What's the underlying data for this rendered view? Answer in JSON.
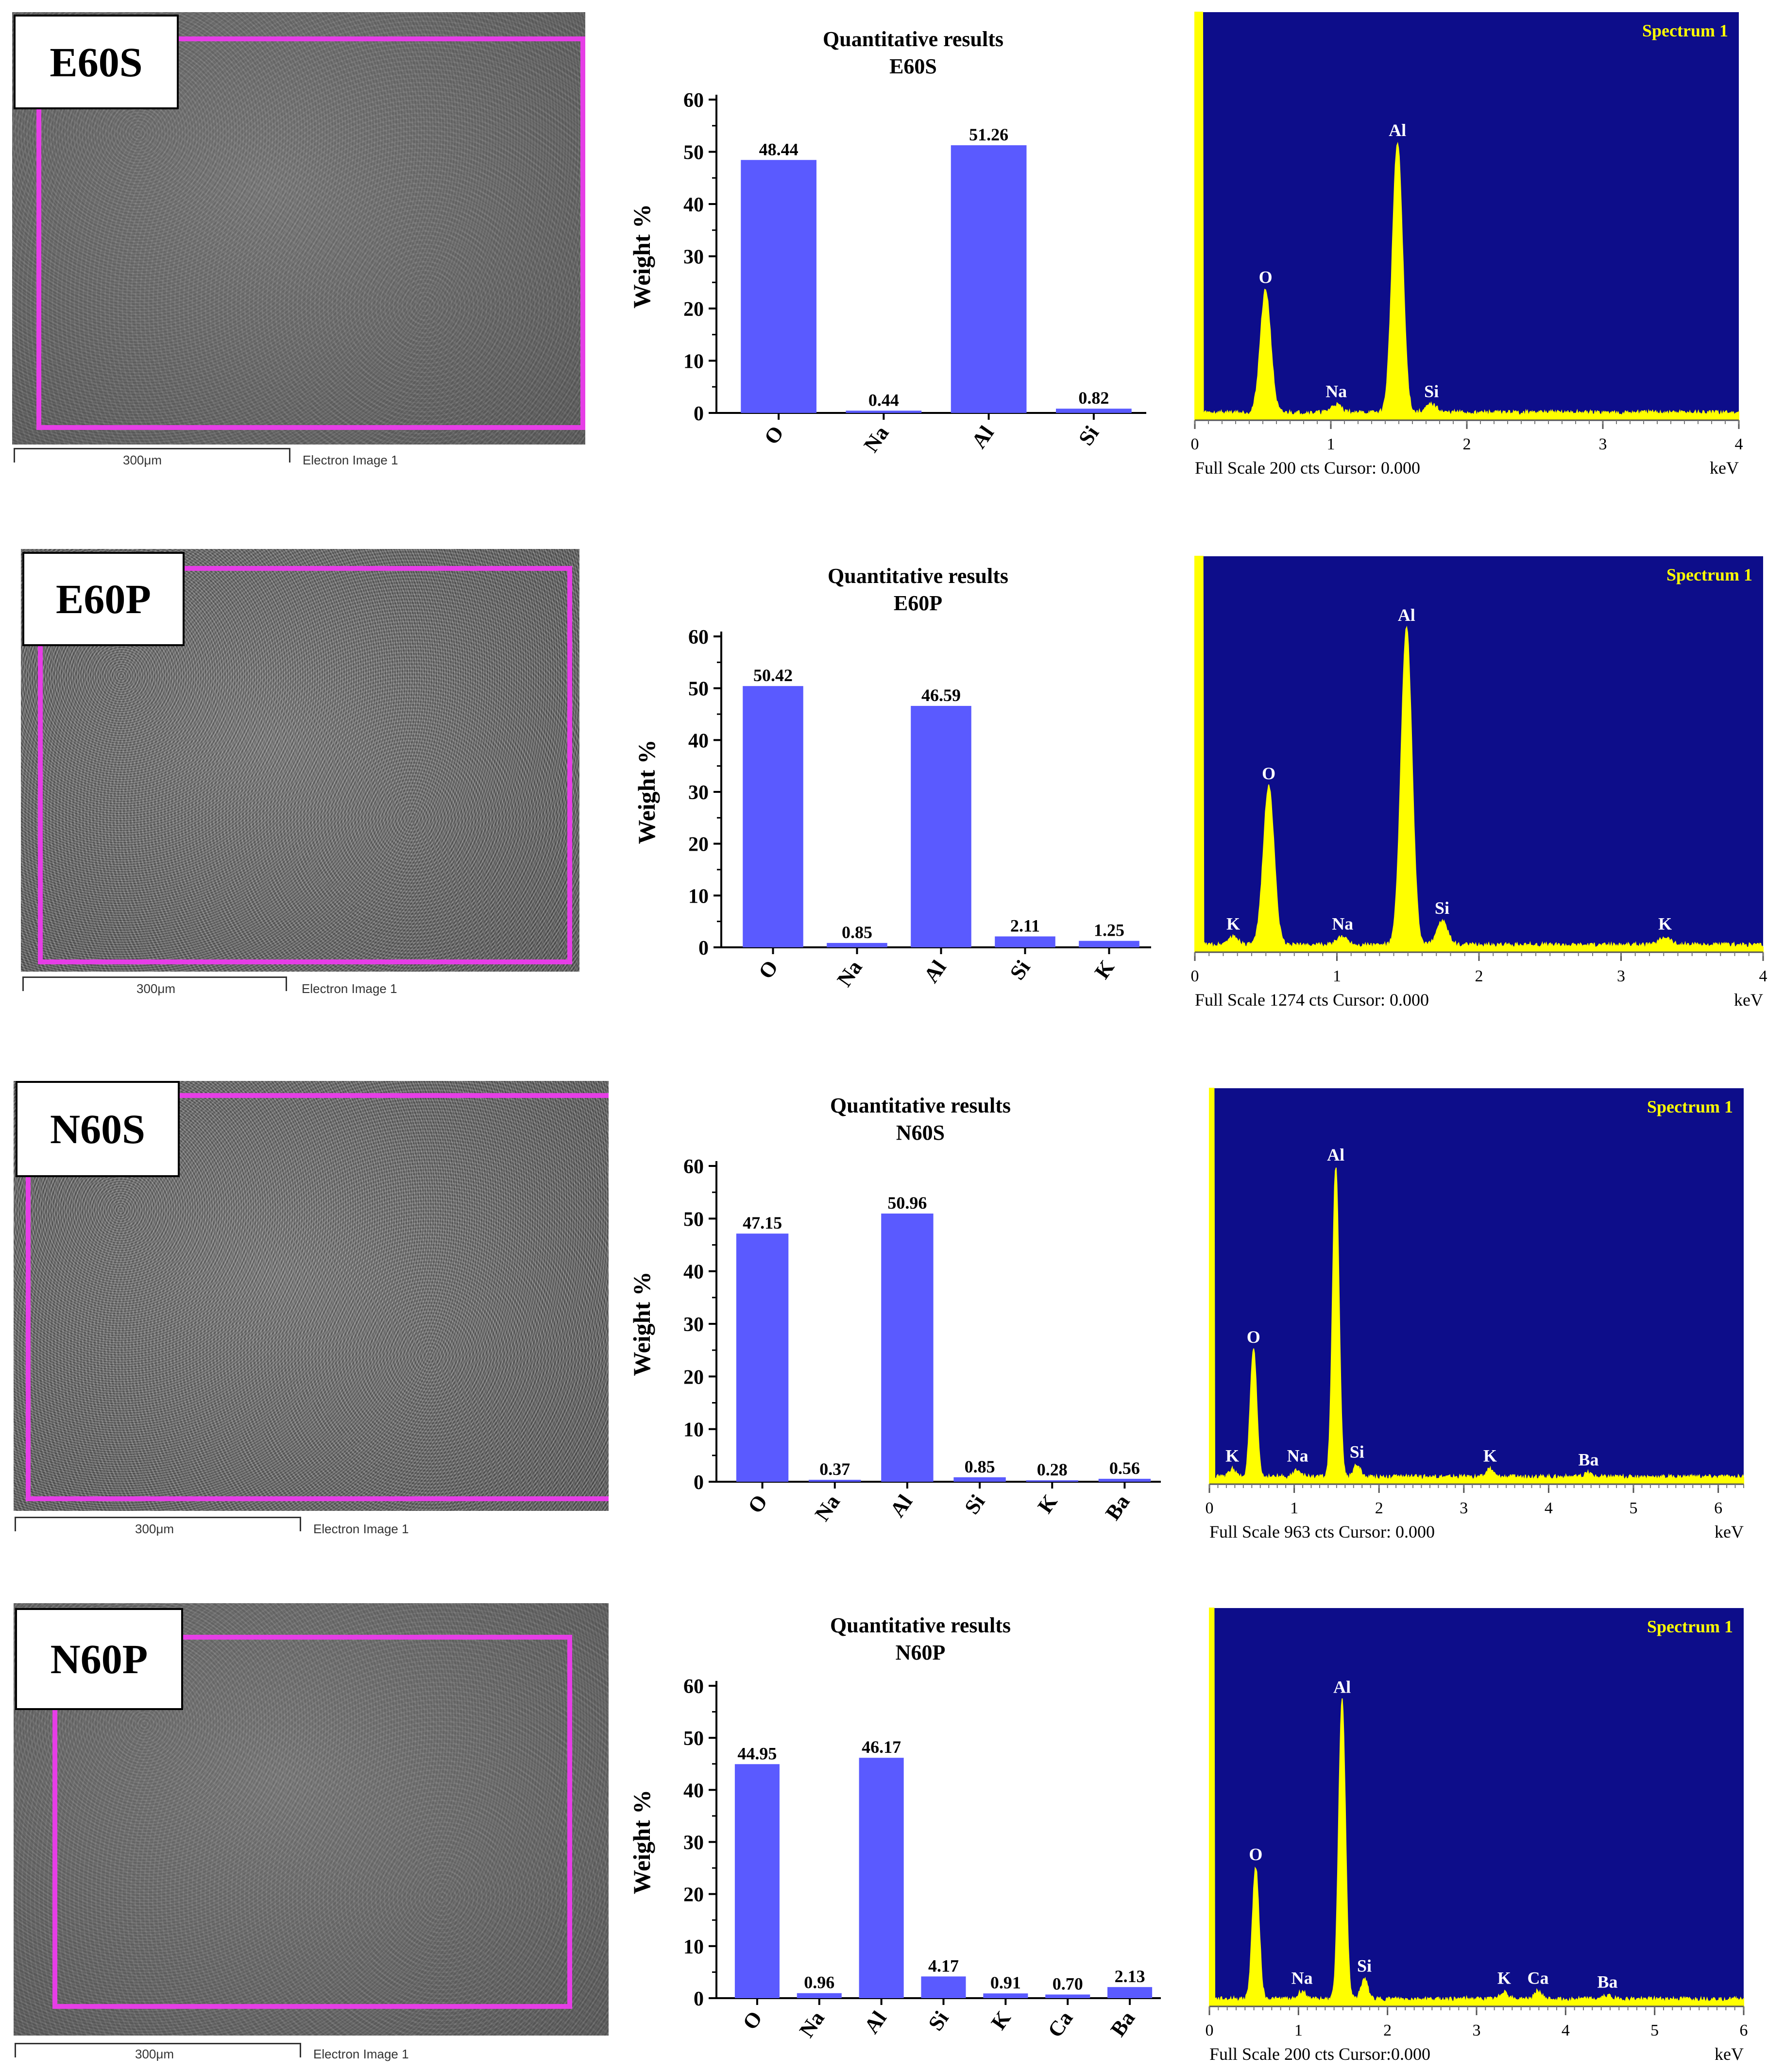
{
  "colors": {
    "bar": "#5a5aff",
    "eds_bg": "#0d0d8a",
    "eds_peak": "#ffff00",
    "roi": "#e63de6"
  },
  "scale_bar_label": "300μm",
  "electron_image_label": "Electron Image 1",
  "chart_data": [
    {
      "type": "bar",
      "sample": "E60S",
      "title": "Quantitative results",
      "subtitle": "E60S",
      "ylabel": "Weight %",
      "ylim": [
        0,
        60
      ],
      "yticks": [
        0,
        10,
        20,
        30,
        40,
        50,
        60
      ],
      "categories": [
        "O",
        "Na",
        "Al",
        "Si"
      ],
      "values": [
        48.44,
        0.44,
        51.26,
        0.82
      ],
      "value_labels": [
        "48.44",
        "0.44",
        "51.26",
        "0.82"
      ]
    },
    {
      "type": "bar",
      "sample": "E60P",
      "title": "Quantitative results",
      "subtitle": "E60P",
      "ylabel": "Weight %",
      "ylim": [
        0,
        60
      ],
      "yticks": [
        0,
        10,
        20,
        30,
        40,
        50,
        60
      ],
      "categories": [
        "O",
        "Na",
        "Al",
        "Si",
        "K"
      ],
      "values": [
        50.42,
        0.85,
        46.59,
        2.11,
        1.25
      ],
      "value_labels": [
        "50.42",
        "0.85",
        "46.59",
        "2.11",
        "1.25"
      ]
    },
    {
      "type": "bar",
      "sample": "N60S",
      "title": "Quantitative results",
      "subtitle": "N60S",
      "ylabel": "Weight %",
      "ylim": [
        0,
        60
      ],
      "yticks": [
        0,
        10,
        20,
        30,
        40,
        50,
        60
      ],
      "categories": [
        "O",
        "Na",
        "Al",
        "Si",
        "K",
        "Ba"
      ],
      "values": [
        47.15,
        0.37,
        50.96,
        0.85,
        0.28,
        0.56
      ],
      "value_labels": [
        "47.15",
        "0.37",
        "50.96",
        "0.85",
        "0.28",
        "0.56"
      ]
    },
    {
      "type": "bar",
      "sample": "N60P",
      "title": "Quantitative results",
      "subtitle": "N60P",
      "ylabel": "Weight %",
      "ylim": [
        0,
        60
      ],
      "yticks": [
        0,
        10,
        20,
        30,
        40,
        50,
        60
      ],
      "categories": [
        "O",
        "Na",
        "Al",
        "Si",
        "K",
        "Ca",
        "Ba"
      ],
      "values": [
        44.95,
        0.96,
        46.17,
        4.17,
        0.91,
        0.7,
        2.13
      ],
      "value_labels": [
        "44.95",
        "0.96",
        "46.17",
        "4.17",
        "0.91",
        "0.70",
        "2.13"
      ]
    },
    {
      "type": "line",
      "sample": "E60S",
      "title": "Spectrum 1",
      "xlabel": "keV",
      "xlim": [
        0,
        4
      ],
      "xticks": [
        0,
        1,
        2,
        3,
        4
      ],
      "footer": "Full Scale 200 cts Cursor: 0.000",
      "peaks": [
        {
          "element": "O",
          "kev": 0.52,
          "height": 0.3
        },
        {
          "element": "Na",
          "kev": 1.04,
          "height": 0.02
        },
        {
          "element": "Al",
          "kev": 1.49,
          "height": 0.66
        },
        {
          "element": "Si",
          "kev": 1.74,
          "height": 0.02
        }
      ]
    },
    {
      "type": "line",
      "sample": "E60P",
      "title": "Spectrum 1",
      "xlabel": "keV",
      "xlim": [
        0,
        4
      ],
      "xticks": [
        0,
        1,
        2,
        3,
        4
      ],
      "footer": "Full Scale 1274 cts Cursor: 0.000",
      "peaks": [
        {
          "element": "K",
          "kev": 0.27,
          "height": 0.02
        },
        {
          "element": "O",
          "kev": 0.52,
          "height": 0.4
        },
        {
          "element": "Na",
          "kev": 1.04,
          "height": 0.02
        },
        {
          "element": "Al",
          "kev": 1.49,
          "height": 0.8
        },
        {
          "element": "Si",
          "kev": 1.74,
          "height": 0.06
        },
        {
          "element": "K",
          "kev": 3.31,
          "height": 0.02
        }
      ]
    },
    {
      "type": "line",
      "sample": "N60S",
      "title": "Spectrum 1",
      "xlabel": "keV",
      "xlim": [
        0,
        6.3
      ],
      "xticks": [
        0,
        1,
        2,
        3,
        4,
        5,
        6
      ],
      "footer": "Full Scale 963 cts Cursor: 0.000",
      "peaks": [
        {
          "element": "K",
          "kev": 0.27,
          "height": 0.02
        },
        {
          "element": "O",
          "kev": 0.52,
          "height": 0.32
        },
        {
          "element": "Na",
          "kev": 1.04,
          "height": 0.02
        },
        {
          "element": "Al",
          "kev": 1.49,
          "height": 0.78
        },
        {
          "element": "Si",
          "kev": 1.74,
          "height": 0.03
        },
        {
          "element": "K",
          "kev": 3.31,
          "height": 0.02
        },
        {
          "element": "Ba",
          "kev": 4.47,
          "height": 0.01
        }
      ]
    },
    {
      "type": "line",
      "sample": "N60P",
      "title": "Spectrum 1",
      "xlabel": "keV",
      "xlim": [
        0,
        6
      ],
      "xticks": [
        0,
        1,
        2,
        3,
        4,
        5,
        6
      ],
      "footer": "Full Scale 200 cts Cursor:0.000",
      "peaks": [
        {
          "element": "O",
          "kev": 0.52,
          "height": 0.33
        },
        {
          "element": "Na",
          "kev": 1.04,
          "height": 0.02
        },
        {
          "element": "Al",
          "kev": 1.49,
          "height": 0.75
        },
        {
          "element": "Si",
          "kev": 1.74,
          "height": 0.05
        },
        {
          "element": "K",
          "kev": 3.31,
          "height": 0.02
        },
        {
          "element": "Ca",
          "kev": 3.69,
          "height": 0.02
        },
        {
          "element": "Ba",
          "kev": 4.47,
          "height": 0.01
        }
      ]
    }
  ]
}
